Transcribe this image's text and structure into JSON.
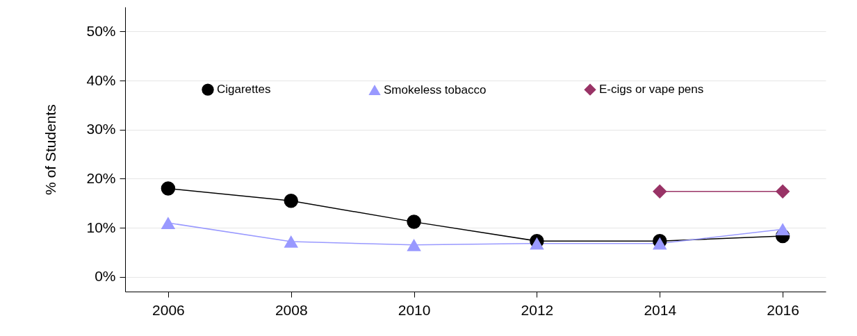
{
  "chart_data": {
    "type": "line",
    "ylabel": "% of Students",
    "x": [
      2006,
      2008,
      2010,
      2012,
      2014,
      2016
    ],
    "xlim": [
      2005.3,
      2016.7
    ],
    "xticks": [
      2006,
      2008,
      2010,
      2012,
      2014,
      2016
    ],
    "ylim": [
      -3,
      55
    ],
    "yticks": [
      {
        "value": 0,
        "label": "0%"
      },
      {
        "value": 10,
        "label": "10%"
      },
      {
        "value": 20,
        "label": "20%"
      },
      {
        "value": 30,
        "label": "30%"
      },
      {
        "value": 40,
        "label": "40%"
      },
      {
        "value": 50,
        "label": "50%"
      }
    ],
    "grid": "y",
    "legend": "top",
    "line_style": "solid",
    "series": [
      {
        "name": "Cigarettes",
        "color": "#000000",
        "marker": "circle",
        "values": [
          18,
          15.5,
          11.2,
          7.3,
          7.3,
          8.3
        ]
      },
      {
        "name": "Smokeless tobacco",
        "color": "#9999ff",
        "marker": "triangle",
        "values": [
          11,
          7.2,
          6.5,
          6.8,
          6.8,
          9.7
        ]
      },
      {
        "name": "E-cigs or vape pens",
        "color": "#993366",
        "marker": "diamond",
        "values": [
          null,
          null,
          null,
          null,
          17.4,
          17.4
        ]
      }
    ]
  }
}
